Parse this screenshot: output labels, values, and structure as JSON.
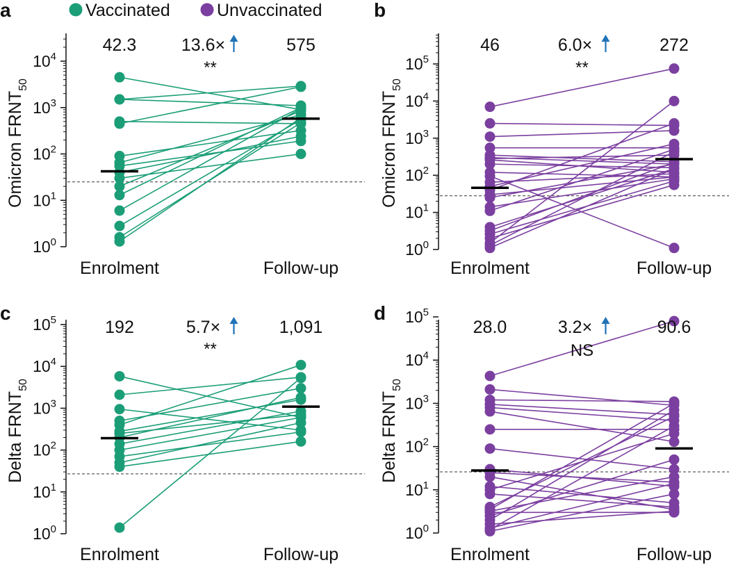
{
  "legend": {
    "items": [
      {
        "label": "Vaccinated",
        "color": "#1b9e77"
      },
      {
        "label": "Unvaccinated",
        "color": "#7b3fa0"
      }
    ]
  },
  "colors": {
    "arrow": "#1f73b7",
    "median_bar": "#000000",
    "threshold_line": "#333333"
  },
  "chart_data": [
    {
      "type": "scatter",
      "panel": "a",
      "ylabel": "Omicron FRNT",
      "ylabel_sub": "50",
      "scale": "log",
      "ylim": [
        1,
        30000
      ],
      "yticks": [
        {
          "b": "10",
          "e": "0",
          "v": 1
        },
        {
          "b": "10",
          "e": "1",
          "v": 10
        },
        {
          "b": "10",
          "e": "2",
          "v": 100
        },
        {
          "b": "10",
          "e": "3",
          "v": 1000
        },
        {
          "b": "10",
          "e": "4",
          "v": 10000
        }
      ],
      "categories": [
        "Enrolment",
        "Follow-up"
      ],
      "color": "#1b9e77",
      "threshold": 25,
      "medians": [
        42.3,
        575
      ],
      "annot": {
        "left": "42.3",
        "fold": "13.6×",
        "right": "575",
        "sig": "**"
      },
      "pairs": [
        [
          4500,
          900
        ],
        [
          1500,
          2900
        ],
        [
          1500,
          1100
        ],
        [
          500,
          450
        ],
        [
          450,
          2800
        ],
        [
          90,
          320
        ],
        [
          65,
          700
        ],
        [
          55,
          190
        ],
        [
          40,
          240
        ],
        [
          30,
          100
        ],
        [
          20,
          850
        ],
        [
          13,
          1000
        ],
        [
          6,
          950
        ],
        [
          2.8,
          550
        ],
        [
          1.6,
          470
        ],
        [
          1.3,
          600
        ]
      ]
    },
    {
      "type": "scatter",
      "panel": "b",
      "ylabel": "Omicron FRNT",
      "ylabel_sub": "50",
      "scale": "log",
      "ylim": [
        1,
        200000
      ],
      "yticks": [
        {
          "b": "10",
          "e": "0",
          "v": 1
        },
        {
          "b": "10",
          "e": "1",
          "v": 10
        },
        {
          "b": "10",
          "e": "2",
          "v": 100
        },
        {
          "b": "10",
          "e": "3",
          "v": 1000
        },
        {
          "b": "10",
          "e": "4",
          "v": 10000
        },
        {
          "b": "10",
          "e": "5",
          "v": 100000
        }
      ],
      "categories": [
        "Enrolment",
        "Follow-up"
      ],
      "color": "#7b3fa0",
      "threshold": 28,
      "medians": [
        46,
        272
      ],
      "annot": {
        "left": "46",
        "fold": "6.0×",
        "right": "272",
        "sig": "**"
      },
      "pairs": [
        [
          7000,
          75000
        ],
        [
          2500,
          2200
        ],
        [
          1100,
          1600
        ],
        [
          550,
          550
        ],
        [
          350,
          230
        ],
        [
          300,
          200
        ],
        [
          280,
          350
        ],
        [
          260,
          120
        ],
        [
          200,
          160
        ],
        [
          120,
          90
        ],
        [
          95,
          1.1
        ],
        [
          65,
          110
        ],
        [
          50,
          700
        ],
        [
          40,
          2500
        ],
        [
          30,
          90
        ],
        [
          25,
          200
        ],
        [
          14,
          80
        ],
        [
          11,
          500
        ],
        [
          4,
          150
        ],
        [
          3.2,
          220
        ],
        [
          2.6,
          70
        ],
        [
          2,
          55
        ],
        [
          1.5,
          10000
        ],
        [
          1.3,
          430
        ],
        [
          1.1,
          150
        ]
      ]
    },
    {
      "type": "scatter",
      "panel": "c",
      "ylabel": "Delta FRNT",
      "ylabel_sub": "50",
      "scale": "log",
      "ylim": [
        1,
        150000
      ],
      "yticks": [
        {
          "b": "10",
          "e": "0",
          "v": 1
        },
        {
          "b": "10",
          "e": "1",
          "v": 10
        },
        {
          "b": "10",
          "e": "2",
          "v": 100
        },
        {
          "b": "10",
          "e": "3",
          "v": 1000
        },
        {
          "b": "10",
          "e": "4",
          "v": 10000
        },
        {
          "b": "10",
          "e": "5",
          "v": 100000
        }
      ],
      "categories": [
        "Enrolment",
        "Follow-up"
      ],
      "color": "#1b9e77",
      "threshold": 27,
      "medians": [
        192,
        1091
      ],
      "annot": {
        "left": "192",
        "fold": "5.7×",
        "right": "1,091",
        "sig": "**"
      },
      "pairs": [
        [
          5800,
          600
        ],
        [
          2100,
          5500
        ],
        [
          950,
          300
        ],
        [
          500,
          3000
        ],
        [
          400,
          10800
        ],
        [
          280,
          1600
        ],
        [
          250,
          700
        ],
        [
          200,
          1800
        ],
        [
          140,
          850
        ],
        [
          100,
          600
        ],
        [
          70,
          270
        ],
        [
          50,
          450
        ],
        [
          40,
          160
        ],
        [
          1.4,
          5300
        ]
      ]
    },
    {
      "type": "scatter",
      "panel": "d",
      "ylabel": "Delta FRNT",
      "ylabel_sub": "50",
      "scale": "log",
      "ylim": [
        1,
        500000
      ],
      "yticks": [
        {
          "b": "10",
          "e": "0",
          "v": 1
        },
        {
          "b": "10",
          "e": "1",
          "v": 10
        },
        {
          "b": "10",
          "e": "2",
          "v": 100
        },
        {
          "b": "10",
          "e": "3",
          "v": 1000
        },
        {
          "b": "10",
          "e": "4",
          "v": 10000
        },
        {
          "b": "10",
          "e": "5",
          "v": 100000
        }
      ],
      "categories": [
        "Enrolment",
        "Follow-up"
      ],
      "color": "#7b3fa0",
      "threshold": 26,
      "medians": [
        28.0,
        90.6
      ],
      "annot": {
        "left": "28.0",
        "fold": "3.2×",
        "right": "90.6",
        "sig": "NS"
      },
      "pairs": [
        [
          4300,
          80000
        ],
        [
          2100,
          900
        ],
        [
          1200,
          1100
        ],
        [
          950,
          550
        ],
        [
          800,
          400
        ],
        [
          650,
          130
        ],
        [
          250,
          250
        ],
        [
          90,
          30
        ],
        [
          30,
          12
        ],
        [
          25,
          15
        ],
        [
          20,
          3.5
        ],
        [
          12,
          5
        ],
        [
          10,
          200
        ],
        [
          8,
          4
        ],
        [
          4,
          500
        ],
        [
          3.5,
          1000
        ],
        [
          3.2,
          20
        ],
        [
          3,
          3
        ],
        [
          2.5,
          50
        ],
        [
          2,
          700
        ],
        [
          1.6,
          3.2
        ],
        [
          1.3,
          14
        ],
        [
          1.2,
          300
        ],
        [
          1.1,
          8
        ]
      ]
    }
  ]
}
